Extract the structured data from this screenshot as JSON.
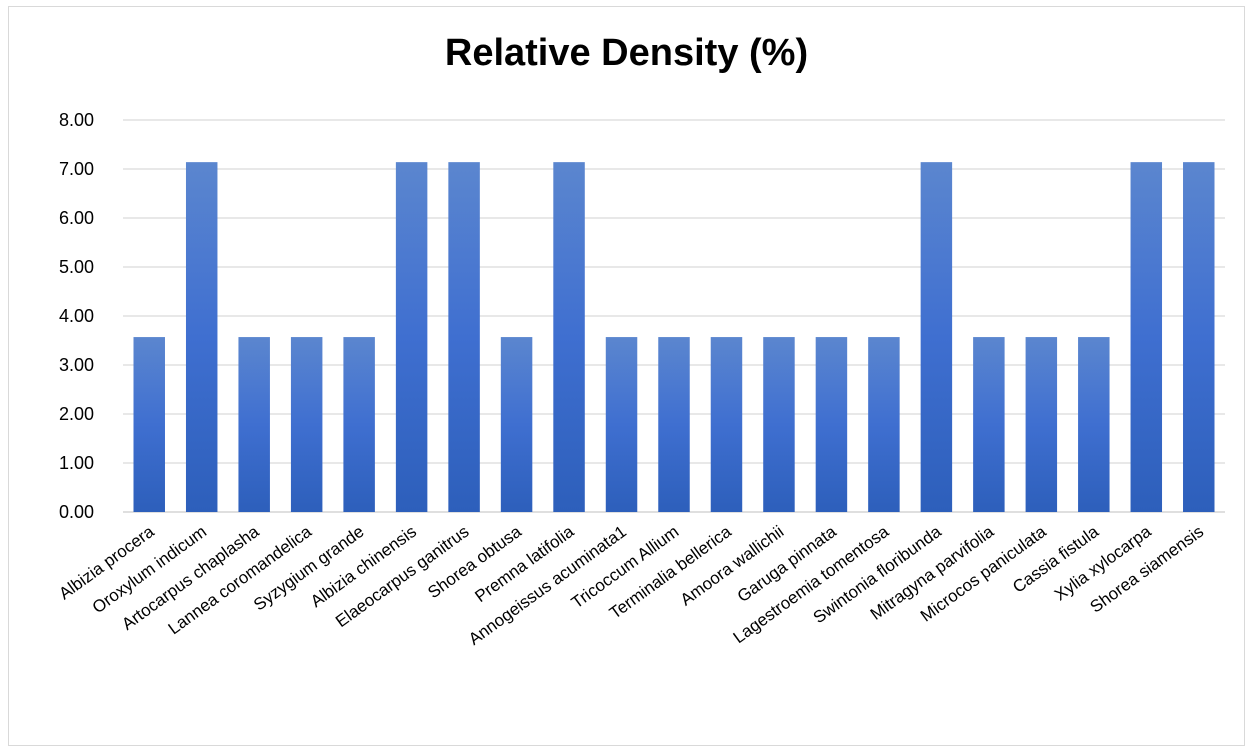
{
  "chart_data": {
    "type": "bar",
    "title": "Relative Density (%)",
    "xlabel": "",
    "ylabel": "",
    "ylim": [
      0,
      8
    ],
    "y_ticks": [
      "0.00",
      "1.00",
      "2.00",
      "3.00",
      "4.00",
      "5.00",
      "6.00",
      "7.00",
      "8.00"
    ],
    "grid": true,
    "legend": "none",
    "bar_color": "#4472C4",
    "categories": [
      "Albizia procera",
      "Oroxylum indicum",
      "Artocarpus chaplasha",
      "Lannea coromandelica",
      "Syzygium grande",
      "Albizia chinensis",
      "Elaeocarpus ganitrus",
      "Shorea obtusa",
      "Premna latifolia",
      "Annogeissus acuminata1",
      "Tricoccum Allium",
      "Terminalia bellerica",
      "Amoora wallichii",
      "Garuga pinnata",
      "Lagestroemia tomentosa",
      "Swintonia floribunda",
      "Mitragyna parvifolia",
      "Microcos paniculata",
      "Cassia fistula",
      "Xylia xylocarpa",
      "Shorea siamensis"
    ],
    "values": [
      3.57,
      7.14,
      3.57,
      3.57,
      3.57,
      7.14,
      7.14,
      3.57,
      7.14,
      3.57,
      3.57,
      3.57,
      3.57,
      3.57,
      3.57,
      7.14,
      3.57,
      3.57,
      3.57,
      7.14,
      7.14
    ]
  }
}
